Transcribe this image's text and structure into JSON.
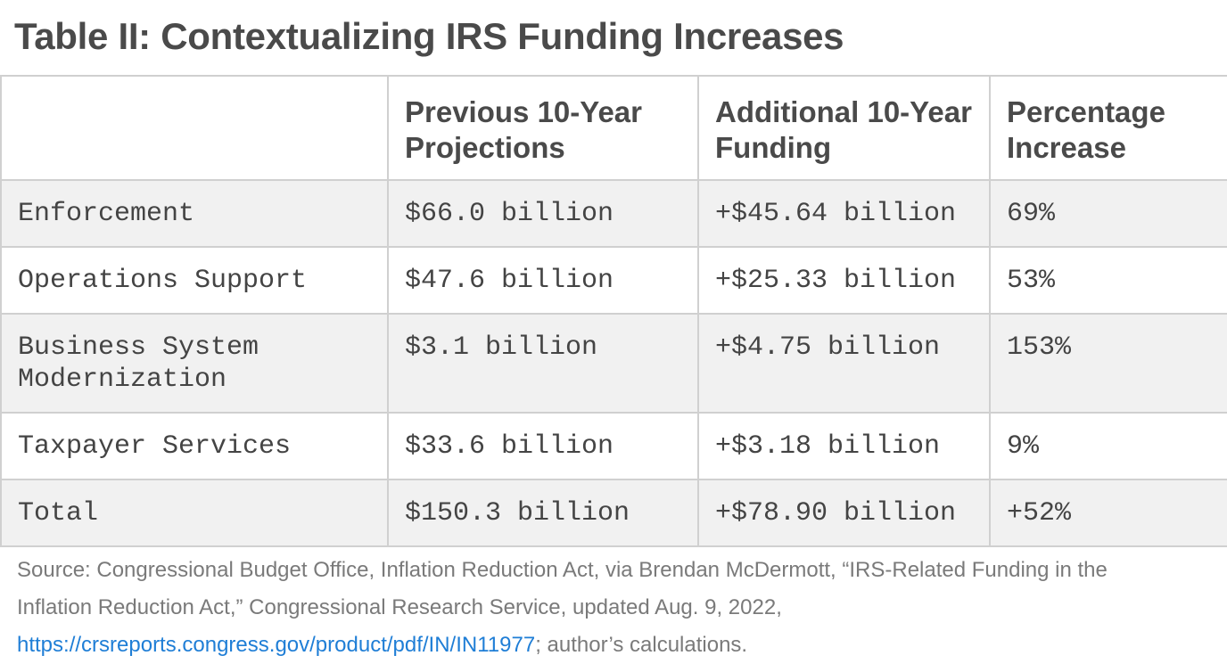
{
  "title": "Table II: Contextualizing IRS Funding Increases",
  "table": {
    "headers": [
      "",
      "Previous 10-Year Projections",
      "Additional 10-Year Funding",
      "Percentage Increase"
    ],
    "rows": [
      [
        "Enforcement",
        "$66.0 billion",
        "+$45.64 billion",
        "69%"
      ],
      [
        "Operations Support",
        "$47.6 billion",
        "+$25.33 billion",
        "53%"
      ],
      [
        "Business System Modernization",
        "$3.1 billion",
        "+$4.75 billion",
        "153%"
      ],
      [
        "Taxpayer Services",
        "$33.6 billion",
        "+$3.18 billion",
        "9%"
      ],
      [
        "Total",
        "$150.3 billion",
        "+$78.90 billion",
        "+52%"
      ]
    ]
  },
  "source": {
    "line1": "Source: Congressional Budget Office, Inflation Reduction Act, via Brendan McDermott, “IRS-Related Funding in the",
    "line2": "Inflation Reduction Act,” Congressional Research Service, updated Aug. 9, 2022,",
    "link": "https://crsreports.congress.gov/product/pdf/IN/IN11977",
    "suffix": "; author’s calculations."
  },
  "colors": {
    "title": "#4a4a4a",
    "border": "#d0d0d0",
    "stripe": "#f1f1f1",
    "link": "#1f7ed6",
    "source_text": "#7a7a7a"
  }
}
